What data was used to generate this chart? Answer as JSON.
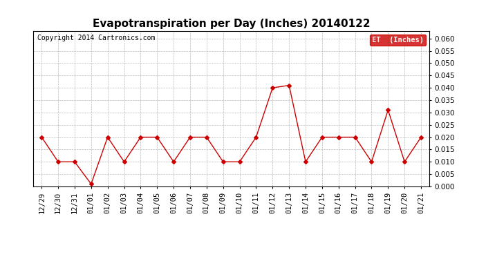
{
  "title": "Evapotranspiration per Day (Inches) 20140122",
  "copyright": "Copyright 2014 Cartronics.com",
  "legend_label": "ET  (Inches)",
  "dates": [
    "12/29",
    "12/30",
    "12/31",
    "01/01",
    "01/02",
    "01/03",
    "01/04",
    "01/05",
    "01/06",
    "01/07",
    "01/08",
    "01/09",
    "01/10",
    "01/11",
    "01/12",
    "01/13",
    "01/14",
    "01/15",
    "01/16",
    "01/17",
    "01/18",
    "01/19",
    "01/20",
    "01/21"
  ],
  "values": [
    0.02,
    0.01,
    0.01,
    0.001,
    0.02,
    0.01,
    0.02,
    0.02,
    0.01,
    0.02,
    0.02,
    0.01,
    0.01,
    0.02,
    0.04,
    0.041,
    0.01,
    0.02,
    0.02,
    0.02,
    0.01,
    0.031,
    0.01,
    0.02
  ],
  "line_color": "#cc0000",
  "marker": "D",
  "marker_size": 3,
  "ylim": [
    0.0,
    0.063
  ],
  "yticks": [
    0.0,
    0.005,
    0.01,
    0.015,
    0.02,
    0.025,
    0.03,
    0.035,
    0.04,
    0.045,
    0.05,
    0.055,
    0.06
  ],
  "background_color": "#ffffff",
  "grid_color": "#aaaaaa",
  "title_fontsize": 11,
  "axis_fontsize": 7.5,
  "copyright_fontsize": 7,
  "legend_bg": "#cc0000",
  "legend_text_color": "#ffffff",
  "fig_width": 6.9,
  "fig_height": 3.75,
  "fig_dpi": 100
}
